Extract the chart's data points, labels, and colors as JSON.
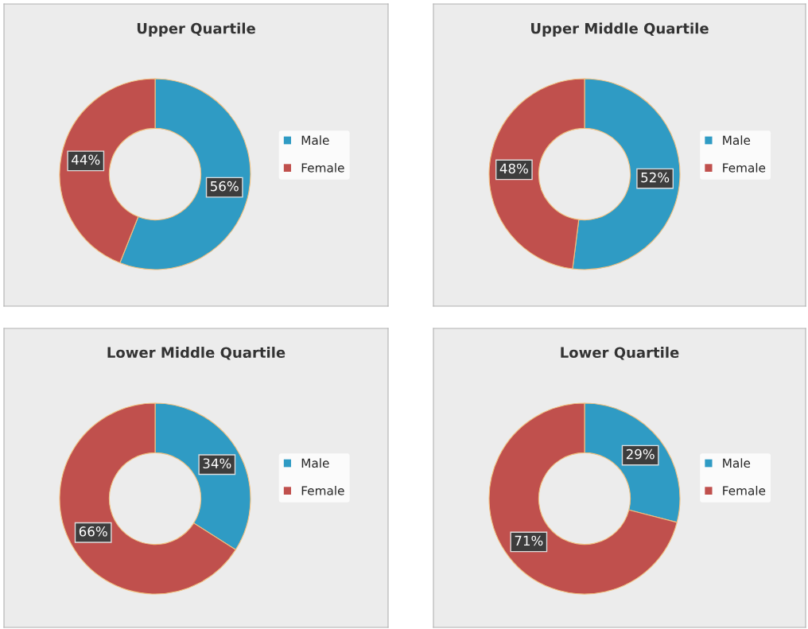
{
  "chart_data": [
    {
      "type": "donut",
      "title": "Upper Quartile",
      "categories": [
        "Male",
        "Female"
      ],
      "values": [
        56,
        44
      ],
      "colors": [
        "#2f9bc4",
        "#c0504d"
      ],
      "value_labels": [
        "56%",
        "44%"
      ],
      "legend": "right"
    },
    {
      "type": "donut",
      "title": "Upper Middle Quartile",
      "categories": [
        "Male",
        "Female"
      ],
      "values": [
        52,
        48
      ],
      "colors": [
        "#2f9bc4",
        "#c0504d"
      ],
      "value_labels": [
        "52%",
        "48%"
      ],
      "legend": "right"
    },
    {
      "type": "donut",
      "title": "Lower Middle Quartile",
      "categories": [
        "Male",
        "Female"
      ],
      "values": [
        34,
        66
      ],
      "colors": [
        "#2f9bc4",
        "#c0504d"
      ],
      "value_labels": [
        "34%",
        "66%"
      ],
      "legend": "right"
    },
    {
      "type": "donut",
      "title": "Lower Quartile",
      "categories": [
        "Male",
        "Female"
      ],
      "values": [
        29,
        71
      ],
      "colors": [
        "#2f9bc4",
        "#c0504d"
      ],
      "value_labels": [
        "29%",
        "71%"
      ],
      "legend": "right"
    }
  ]
}
